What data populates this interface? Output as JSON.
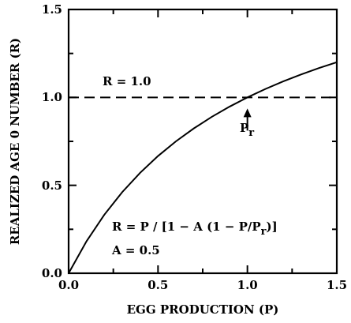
{
  "chart_data": {
    "type": "line",
    "xlabel": "EGG PRODUCTION (P)",
    "ylabel": "REALIZED AGE 0 NUMBER (R)",
    "xlim": [
      0.0,
      1.5
    ],
    "ylim": [
      0.0,
      1.5
    ],
    "xticks": [
      "0.0",
      "0.5",
      "1.0",
      "1.5"
    ],
    "yticks": [
      "0.0",
      "0.5",
      "1.0",
      "1.5"
    ],
    "series": [
      {
        "style": "solid",
        "x": [
          0.0,
          0.1,
          0.2,
          0.3,
          0.4,
          0.5,
          0.6,
          0.7,
          0.8,
          0.9,
          1.0,
          1.1,
          1.2,
          1.3,
          1.4,
          1.5
        ],
        "y": [
          0.0,
          0.1818,
          0.3333,
          0.4615,
          0.5714,
          0.6667,
          0.75,
          0.8235,
          0.8889,
          0.9474,
          1.0,
          1.0476,
          1.0909,
          1.1304,
          1.1667,
          1.2
        ]
      }
    ],
    "reference_line": {
      "style": "dashed",
      "y": 1.0,
      "label": "R = 1.0"
    },
    "annotations": {
      "pr_label": "P",
      "pr_subscript": "r",
      "pr_x": 1.0,
      "formula_main": "R = P / [1 − A (1 − P/P",
      "formula_sub": "r",
      "formula_end": ")]",
      "param": "A = 0.5"
    }
  }
}
